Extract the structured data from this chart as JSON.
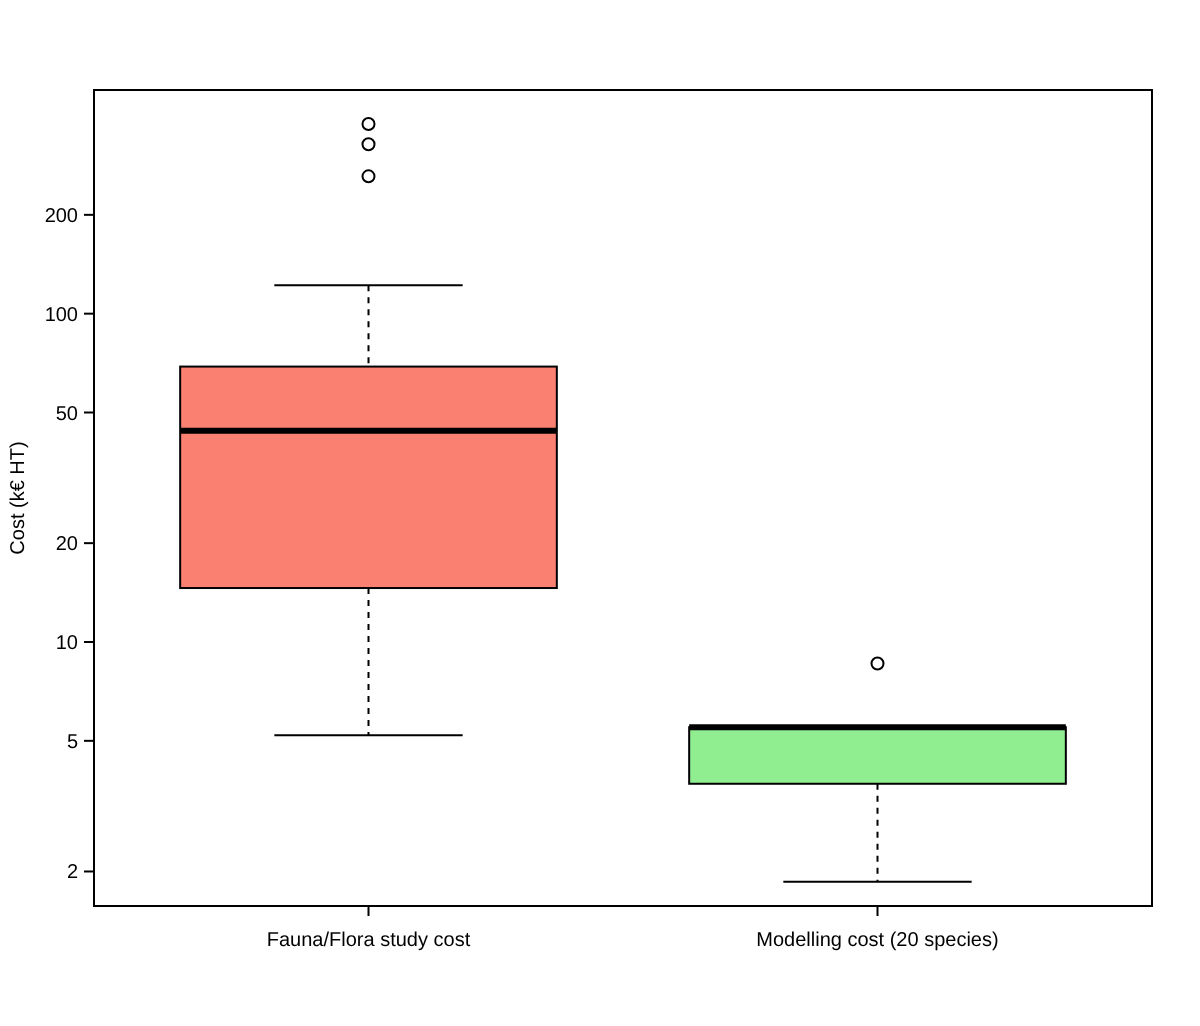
{
  "chart_data": {
    "type": "box",
    "ylabel": "Cost (k€ HT)",
    "categories": [
      "Fauna/Flora study cost",
      "Modelling cost (20 species)"
    ],
    "colors": [
      "#fa8072",
      "#90ee90"
    ],
    "boxes": [
      {
        "low": 5.2,
        "q1": 14.6,
        "median": 44,
        "q3": 69,
        "high": 122,
        "outliers": [
          378,
          328,
          262
        ]
      },
      {
        "low": 1.86,
        "q1": 3.7,
        "median": 5.5,
        "q3": 5.5,
        "high": 5.5,
        "outliers": [
          8.6
        ]
      }
    ],
    "log": true,
    "ylim": [
      1.57,
      480
    ],
    "yticks": [
      2,
      5,
      10,
      20,
      50,
      100,
      200
    ],
    "grid": false
  }
}
